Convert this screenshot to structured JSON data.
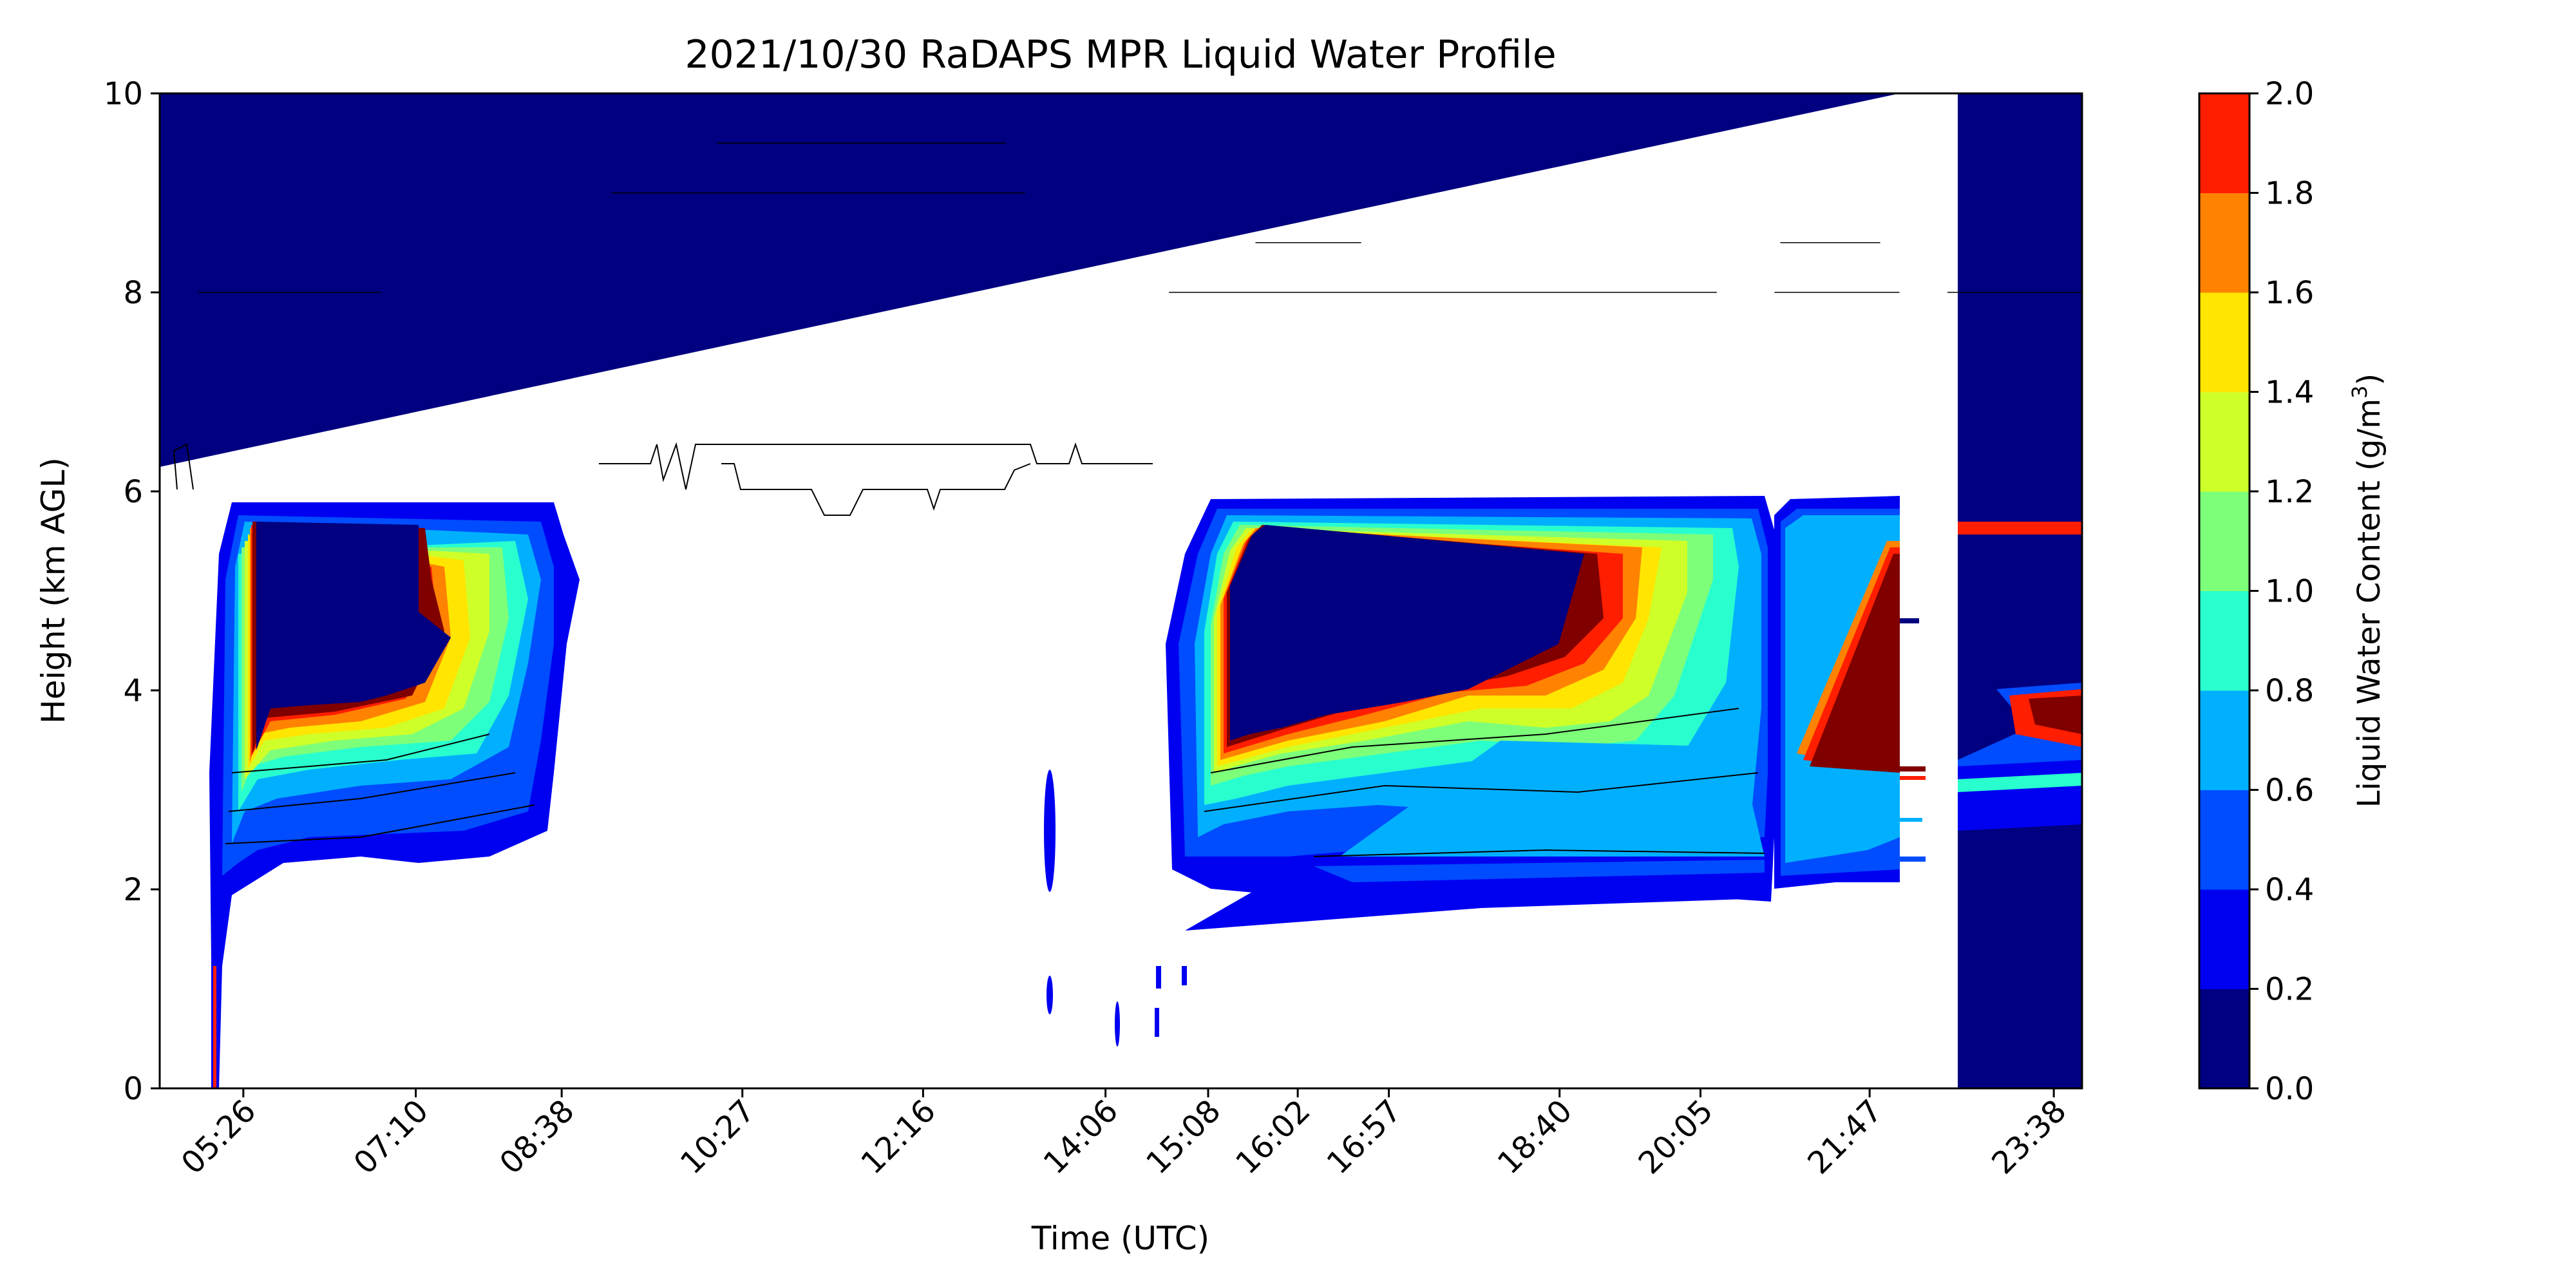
{
  "chart_data": {
    "type": "contour",
    "title": "2021/10/30 RaDAPS MPR Liquid Water Profile",
    "xlabel": "Time (UTC)",
    "ylabel": "Height (km AGL)",
    "ylim": [
      0,
      10
    ],
    "yticks": [
      "0",
      "2",
      "4",
      "6",
      "8",
      "10"
    ],
    "xticks": [
      "05:26",
      "07:10",
      "08:38",
      "10:27",
      "12:16",
      "14:06",
      "15:08",
      "16:02",
      "16:57",
      "18:40",
      "20:05",
      "21:47",
      "23:38"
    ],
    "xtick_fractions": [
      0.0435,
      0.1332,
      0.2091,
      0.3031,
      0.3971,
      0.492,
      0.5454,
      0.592,
      0.6394,
      0.7282,
      0.8015,
      0.8895,
      0.9853
    ],
    "colorbar": {
      "label": "Liquid Water Content (g/m",
      "label_sup": "3",
      "label_end": ")",
      "levels": [
        "0.0",
        "0.2",
        "0.4",
        "0.6",
        "0.8",
        "1.0",
        "1.2",
        "1.4",
        "1.6",
        "1.8",
        "2.0"
      ],
      "colors": [
        "#000080",
        "#0000f1",
        "#004cff",
        "#00b0ff",
        "#29ffce",
        "#7dff7a",
        "#ceff29",
        "#ffe500",
        "#ff8200",
        "#ff1e00",
        "#800000"
      ]
    },
    "annotation_lines": [
      {
        "x": [
          0.02,
          0.115
        ],
        "y": 8.0
      },
      {
        "x": [
          0.235,
          0.45
        ],
        "y": 9.0
      },
      {
        "x": [
          0.29,
          0.44
        ],
        "y": 9.5
      },
      {
        "x": [
          0.525,
          0.81
        ],
        "y": 8.0
      },
      {
        "x": [
          0.57,
          0.625
        ],
        "y": 8.5
      },
      {
        "x": [
          0.84,
          0.905
        ],
        "y": 8.0
      },
      {
        "x": [
          0.843,
          0.895
        ],
        "y": 8.5
      },
      {
        "x": [
          0.93,
          1.0
        ],
        "y": 8.0
      }
    ]
  }
}
